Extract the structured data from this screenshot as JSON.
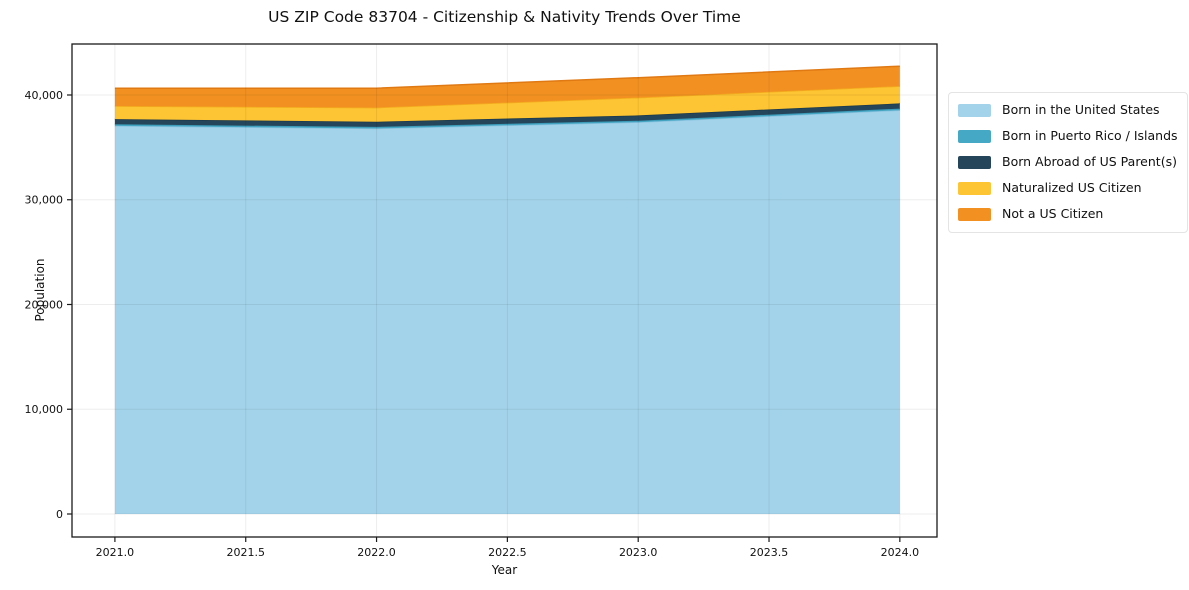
{
  "title": "US ZIP Code 83704 - Citizenship & Nativity Trends Over Time",
  "chart_data": {
    "type": "area",
    "stacked": true,
    "title": "US ZIP Code 83704 - Citizenship & Nativity Trends Over Time",
    "xlabel": "Year",
    "ylabel": "Population",
    "x": [
      2021,
      2022,
      2023,
      2024
    ],
    "series": [
      {
        "name": "Born in the United States",
        "values": [
          37050,
          36800,
          37400,
          38550
        ],
        "fill": "#a3d3ea",
        "edge": "#8cc3e0"
      },
      {
        "name": "Born in Puerto Rico / Islands",
        "values": [
          150,
          150,
          150,
          150
        ],
        "fill": "#45a8c4",
        "edge": "#3a99b6"
      },
      {
        "name": "Born Abroad of US Parent(s)",
        "values": [
          500,
          500,
          500,
          500
        ],
        "fill": "#25455a",
        "edge": "#1c3a4d"
      },
      {
        "name": "Naturalized US Citizen",
        "values": [
          1250,
          1350,
          1700,
          1650
        ],
        "fill": "#fdc433",
        "edge": "#f3ac1d"
      },
      {
        "name": "Not a US Citizen",
        "values": [
          1700,
          1850,
          1900,
          1900
        ],
        "fill": "#f29122",
        "edge": "#e07912"
      }
    ],
    "xlim": [
      2020.836,
      2024.142
    ],
    "ylim": [
      -2196,
      44868
    ],
    "xticks": [
      2021.0,
      2021.5,
      2022.0,
      2022.5,
      2023.0,
      2023.5,
      2024.0
    ],
    "xtick_labels": [
      "2021.0",
      "2021.5",
      "2022.0",
      "2022.5",
      "2023.0",
      "2023.5",
      "2024.0"
    ],
    "yticks": [
      0,
      10000,
      20000,
      30000,
      40000
    ],
    "ytick_labels": [
      "0",
      "10,000",
      "20,000",
      "30,000",
      "40,000"
    ],
    "grid": true,
    "legend_position": "right",
    "colors": {
      "spine": "#1a1a1a",
      "grid": "rgba(0,0,0,0.07)",
      "background": "#ffffff"
    }
  }
}
